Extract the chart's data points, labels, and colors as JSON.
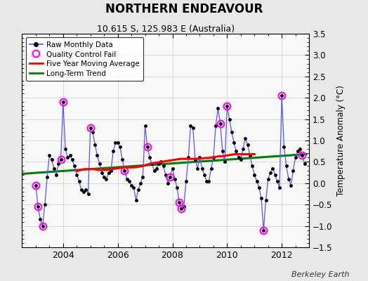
{
  "title": "NORTHERN ENDEAVOUR",
  "subtitle": "10.615 S, 125.983 E (Australia)",
  "ylabel": "Temperature Anomaly (°C)",
  "watermark": "Berkeley Earth",
  "ylim": [
    -1.5,
    3.5
  ],
  "yticks": [
    -1.5,
    -1.0,
    -0.5,
    0.0,
    0.5,
    1.0,
    1.5,
    2.0,
    2.5,
    3.0,
    3.5
  ],
  "xlim": [
    2002.5,
    2013.0
  ],
  "xticks": [
    2004,
    2006,
    2008,
    2010,
    2012
  ],
  "bg_color": "#e8e8e8",
  "plot_bg_color": "#f8f8f8",
  "raw_color": "#5555ff",
  "raw_marker_color": "black",
  "qc_color": "magenta",
  "ma_color": "red",
  "trend_color": "green",
  "raw_data_x": [
    2003.0,
    2003.083,
    2003.167,
    2003.25,
    2003.333,
    2003.417,
    2003.5,
    2003.583,
    2003.667,
    2003.75,
    2003.833,
    2003.917,
    2004.0,
    2004.083,
    2004.167,
    2004.25,
    2004.333,
    2004.417,
    2004.5,
    2004.583,
    2004.667,
    2004.75,
    2004.833,
    2004.917,
    2005.0,
    2005.083,
    2005.167,
    2005.25,
    2005.333,
    2005.417,
    2005.5,
    2005.583,
    2005.667,
    2005.75,
    2005.833,
    2005.917,
    2006.0,
    2006.083,
    2006.167,
    2006.25,
    2006.333,
    2006.417,
    2006.5,
    2006.583,
    2006.667,
    2006.75,
    2006.833,
    2006.917,
    2007.0,
    2007.083,
    2007.167,
    2007.25,
    2007.333,
    2007.417,
    2007.5,
    2007.583,
    2007.667,
    2007.75,
    2007.833,
    2007.917,
    2008.0,
    2008.083,
    2008.167,
    2008.25,
    2008.333,
    2008.417,
    2008.5,
    2008.583,
    2008.667,
    2008.75,
    2008.833,
    2008.917,
    2009.0,
    2009.083,
    2009.167,
    2009.25,
    2009.333,
    2009.417,
    2009.5,
    2009.583,
    2009.667,
    2009.75,
    2009.833,
    2009.917,
    2010.0,
    2010.083,
    2010.167,
    2010.25,
    2010.333,
    2010.417,
    2010.5,
    2010.583,
    2010.667,
    2010.75,
    2010.833,
    2010.917,
    2011.0,
    2011.083,
    2011.167,
    2011.25,
    2011.333,
    2011.417,
    2011.5,
    2011.583,
    2011.667,
    2011.75,
    2011.833,
    2011.917,
    2012.0,
    2012.083,
    2012.167,
    2012.25,
    2012.333,
    2012.417,
    2012.5,
    2012.583,
    2012.667,
    2012.75,
    2012.833
  ],
  "raw_data_y": [
    -0.05,
    -0.55,
    -0.85,
    -1.0,
    -0.5,
    0.15,
    0.65,
    0.55,
    0.35,
    0.2,
    0.45,
    0.55,
    1.9,
    0.8,
    0.6,
    0.65,
    0.55,
    0.4,
    0.2,
    0.05,
    -0.15,
    -0.2,
    -0.15,
    -0.25,
    1.3,
    1.2,
    0.9,
    0.65,
    0.45,
    0.25,
    0.15,
    0.1,
    0.25,
    0.3,
    0.75,
    0.95,
    0.95,
    0.85,
    0.55,
    0.3,
    0.1,
    0.05,
    -0.05,
    -0.1,
    -0.4,
    -0.15,
    0.0,
    0.15,
    1.35,
    0.85,
    0.6,
    0.45,
    0.3,
    0.35,
    0.45,
    0.5,
    0.4,
    0.2,
    0.0,
    0.15,
    0.35,
    0.1,
    -0.1,
    -0.45,
    -0.6,
    -0.55,
    0.05,
    0.6,
    1.35,
    1.3,
    0.55,
    0.35,
    0.6,
    0.35,
    0.2,
    0.05,
    0.05,
    0.35,
    0.6,
    1.35,
    1.75,
    1.4,
    0.75,
    0.5,
    1.8,
    1.5,
    1.2,
    0.95,
    0.75,
    0.6,
    0.55,
    0.8,
    1.05,
    0.9,
    0.65,
    0.4,
    0.2,
    0.05,
    -0.1,
    -0.35,
    -1.1,
    -0.4,
    0.1,
    0.25,
    0.35,
    0.2,
    0.05,
    -0.1,
    2.05,
    0.85,
    0.4,
    0.1,
    -0.05,
    0.3,
    0.6,
    0.75,
    0.8,
    0.65,
    0.45
  ],
  "qc_fail_x": [
    2003.0,
    2003.083,
    2003.25,
    2003.917,
    2004.0,
    2005.0,
    2006.25,
    2007.083,
    2007.917,
    2008.25,
    2008.333,
    2009.75,
    2010.0,
    2011.333,
    2012.0,
    2012.75
  ],
  "qc_fail_y": [
    -0.05,
    -0.55,
    -1.0,
    0.55,
    1.9,
    1.3,
    0.3,
    0.85,
    0.15,
    -0.45,
    -0.6,
    1.4,
    1.8,
    -1.1,
    2.05,
    0.65
  ],
  "ma_x": [
    2004.5,
    2004.6,
    2004.7,
    2004.8,
    2004.9,
    2005.0,
    2005.1,
    2005.2,
    2005.3,
    2005.4,
    2005.5,
    2005.6,
    2005.7,
    2005.8,
    2005.9,
    2006.0,
    2006.1,
    2006.2,
    2006.3,
    2006.4,
    2006.5,
    2006.6,
    2006.7,
    2006.8,
    2006.9,
    2007.0,
    2007.1,
    2007.2,
    2007.3,
    2007.4,
    2007.5,
    2007.6,
    2007.7,
    2007.8,
    2007.9,
    2008.0,
    2008.1,
    2008.2,
    2008.3,
    2008.4,
    2008.5,
    2008.6,
    2008.7,
    2008.8,
    2008.9,
    2009.0,
    2009.1,
    2009.2,
    2009.3,
    2009.4,
    2009.5,
    2009.6,
    2009.7,
    2009.8,
    2009.9,
    2010.0,
    2010.1,
    2010.2,
    2010.3,
    2010.4,
    2010.5,
    2010.6,
    2010.7,
    2010.8,
    2010.9,
    2011.0
  ],
  "ma_y": [
    0.28,
    0.3,
    0.32,
    0.33,
    0.33,
    0.33,
    0.33,
    0.32,
    0.31,
    0.31,
    0.31,
    0.31,
    0.32,
    0.33,
    0.34,
    0.35,
    0.36,
    0.37,
    0.37,
    0.37,
    0.37,
    0.37,
    0.38,
    0.39,
    0.4,
    0.42,
    0.44,
    0.46,
    0.47,
    0.48,
    0.49,
    0.5,
    0.51,
    0.52,
    0.53,
    0.54,
    0.55,
    0.56,
    0.57,
    0.57,
    0.57,
    0.57,
    0.57,
    0.57,
    0.57,
    0.58,
    0.58,
    0.59,
    0.59,
    0.6,
    0.61,
    0.62,
    0.63,
    0.63,
    0.64,
    0.65,
    0.66,
    0.67,
    0.68,
    0.68,
    0.68,
    0.68,
    0.68,
    0.68,
    0.68,
    0.68
  ],
  "trend_x": [
    2002.5,
    2012.9
  ],
  "trend_y": [
    0.22,
    0.68
  ]
}
